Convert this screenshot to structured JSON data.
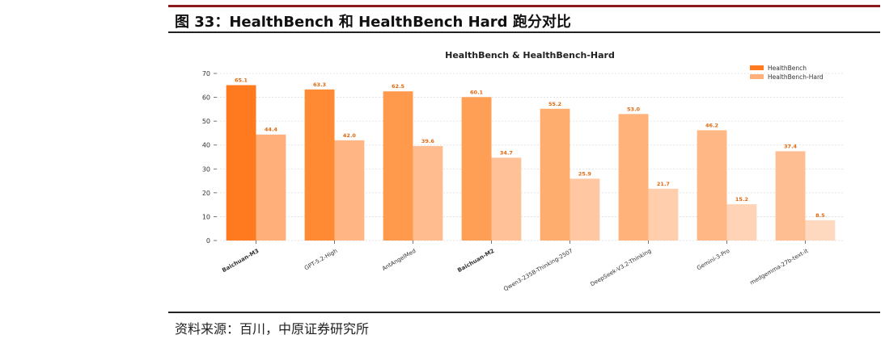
{
  "figure": {
    "title": "图 33：HealthBench 和 HealthBench Hard 跑分对比",
    "source": "资料来源：百川，中原证券研究所"
  },
  "colors": {
    "accent_rule": "#8b1a1a",
    "hb": [
      "#ff7a1f",
      "#ff8a33",
      "#ff9a4d",
      "#ff9f55",
      "#ffad6e",
      "#ffb27a",
      "#ffb786",
      "#ffbe91"
    ],
    "hard": [
      "#ffb07a",
      "#ffb584",
      "#ffbd8f",
      "#ffc298",
      "#ffc8a2",
      "#ffceac",
      "#ffd4b6",
      "#ffd9bf"
    ]
  },
  "chart_data": {
    "type": "bar",
    "title": "HealthBench & HealthBench-Hard",
    "xlabel": "",
    "ylabel": "",
    "ylim": [
      0,
      70
    ],
    "yticks": [
      "0",
      "10",
      "20",
      "30",
      "40",
      "50",
      "60",
      "70"
    ],
    "grid": true,
    "legend": "top-right",
    "categories": [
      "Baichuan-M3",
      "GPT-5.2-High",
      "AntAngelMed",
      "Baichuan-M2",
      "Qwen3-235B-Thinking-2507",
      "DeepSeek-V3.2-Thinking",
      "Gemini-3-Pro",
      "medgemma-27b-text-it"
    ],
    "bold_categories": [
      true,
      false,
      false,
      true,
      false,
      false,
      false,
      false
    ],
    "series": [
      {
        "name": "HealthBench",
        "values": [
          65.1,
          63.3,
          62.5,
          60.1,
          55.2,
          53.0,
          46.2,
          37.4
        ],
        "labels": [
          "65.1",
          "63.3",
          "62.5",
          "60.1",
          "55.2",
          "53.0",
          "46.2",
          "37.4"
        ]
      },
      {
        "name": "HealthBench-Hard",
        "values": [
          44.4,
          42.0,
          39.6,
          34.7,
          25.9,
          21.7,
          15.2,
          8.5
        ],
        "labels": [
          "44.4",
          "42.0",
          "39.6",
          "34.7",
          "25.9",
          "21.7",
          "15.2",
          "8.5"
        ]
      }
    ]
  }
}
